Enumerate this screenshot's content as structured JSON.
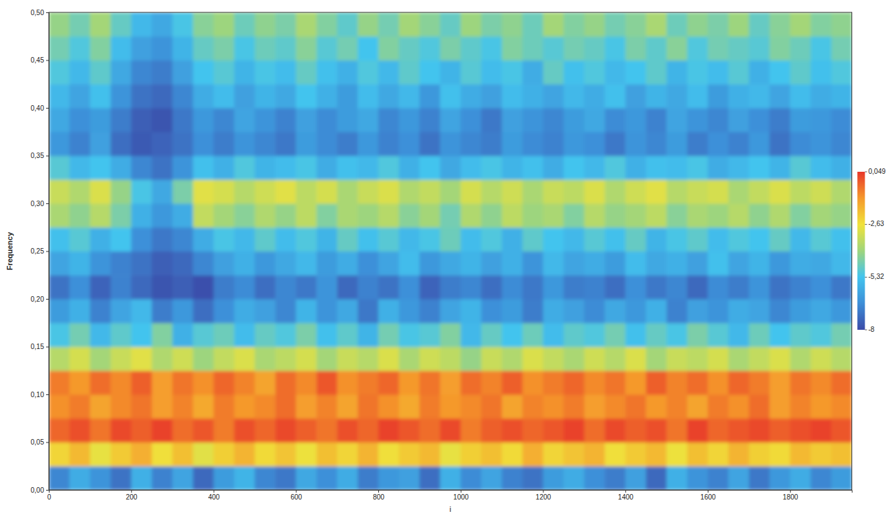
{
  "chart_data": {
    "type": "heatmap",
    "x_label": "i",
    "y_label": "Frequency",
    "xlim": [
      0,
      1950
    ],
    "ylim": [
      0,
      0.5
    ],
    "xticks": [
      0,
      200,
      400,
      600,
      800,
      1000,
      1200,
      1400,
      1600,
      1800
    ],
    "yticks": [
      {
        "value": 0,
        "label": "0,00"
      },
      {
        "value": 0.05,
        "label": "0,05"
      },
      {
        "value": 0.1,
        "label": "0,10"
      },
      {
        "value": 0.15,
        "label": "0,15"
      },
      {
        "value": 0.2,
        "label": "0,20"
      },
      {
        "value": 0.25,
        "label": "0,25"
      },
      {
        "value": 0.3,
        "label": "0,30"
      },
      {
        "value": 0.35,
        "label": "0,35"
      },
      {
        "value": 0.4,
        "label": "0,40"
      },
      {
        "value": 0.45,
        "label": "0,45"
      },
      {
        "value": 0.5,
        "label": "0,50"
      }
    ],
    "x_bins": [
      0,
      50,
      100,
      150,
      200,
      250,
      300,
      350,
      400,
      450,
      500,
      550,
      600,
      650,
      700,
      750,
      800,
      850,
      900,
      950,
      1000,
      1050,
      1100,
      1150,
      1200,
      1250,
      1300,
      1350,
      1400,
      1450,
      1500,
      1550,
      1600,
      1650,
      1700,
      1750,
      1800,
      1850,
      1900,
      1950
    ],
    "y_bins": [
      0,
      0.025,
      0.05,
      0.075,
      0.1,
      0.125,
      0.15,
      0.175,
      0.2,
      0.225,
      0.25,
      0.275,
      0.3,
      0.325,
      0.35,
      0.375,
      0.4,
      0.425,
      0.45,
      0.475,
      0.5
    ],
    "cells": [
      [
        -6.8,
        -5.9,
        -6.5,
        -7.2,
        -5.8,
        -6.9,
        -6.1,
        -7.4,
        -6.3,
        -5.7,
        -6.8,
        -7.1,
        -6.0,
        -6.6,
        -5.9,
        -7.0,
        -6.4,
        -6.2,
        -7.3,
        -5.8,
        -6.7,
        -6.1,
        -6.9,
        -7.2,
        -6.3,
        -5.9,
        -6.6,
        -7.0,
        -6.2,
        -7.4,
        -5.8,
        -6.5,
        -6.9,
        -6.1,
        -7.1,
        -6.4,
        -5.9,
        -6.8,
        -6.3
      ],
      [
        -2.4,
        -1.9,
        -2.8,
        -2.2,
        -1.7,
        -2.6,
        -2.0,
        -2.9,
        -2.3,
        -1.8,
        -2.5,
        -2.1,
        -2.7,
        -2.0,
        -2.4,
        -1.8,
        -2.6,
        -2.2,
        -1.9,
        -2.8,
        -2.3,
        -2.0,
        -2.5,
        -1.7,
        -2.4,
        -2.1,
        -1.8,
        -2.6,
        -2.2,
        -1.9,
        -2.7,
        -2.0,
        -2.4,
        -1.8,
        -2.3,
        -2.5,
        -1.9,
        -2.2,
        -2.0
      ],
      [
        -0.6,
        -0.3,
        -0.8,
        -0.2,
        -0.5,
        -0.1,
        -0.7,
        -0.4,
        -0.9,
        -0.3,
        -0.6,
        -0.2,
        -0.5,
        -0.8,
        -0.3,
        -0.6,
        -0.1,
        -0.4,
        -0.7,
        -0.2,
        -0.9,
        -0.5,
        -0.3,
        -0.6,
        -0.4,
        -0.1,
        -0.7,
        -0.2,
        -0.5,
        -0.3,
        -0.8,
        -0.1,
        -0.6,
        -0.4,
        -0.2,
        -0.5,
        -0.3,
        -0.1,
        -0.4
      ],
      [
        -1.2,
        -0.9,
        -1.5,
        -1.1,
        -0.8,
        -1.4,
        -1.0,
        -1.6,
        -0.9,
        -1.3,
        -1.1,
        -0.7,
        -1.4,
        -1.0,
        -1.5,
        -0.8,
        -1.2,
        -1.6,
        -0.9,
        -1.3,
        -1.1,
        -0.8,
        -1.5,
        -1.0,
        -1.2,
        -0.9,
        -1.4,
        -1.1,
        -0.8,
        -1.3,
        -1.0,
        -1.5,
        -0.9,
        -1.2,
        -0.7,
        -1.4,
        -1.0,
        -1.3,
        -1.1
      ],
      [
        -0.9,
        -1.3,
        -0.7,
        -1.1,
        -0.5,
        -1.4,
        -0.8,
        -1.2,
        -0.6,
        -1.0,
        -1.5,
        -0.7,
        -1.1,
        -0.4,
        -1.2,
        -0.9,
        -0.6,
        -1.3,
        -0.8,
        -1.4,
        -0.7,
        -1.0,
        -0.5,
        -1.2,
        -0.9,
        -0.6,
        -1.1,
        -0.8,
        -1.3,
        -0.5,
        -1.0,
        -0.7,
        -1.2,
        -0.6,
        -0.9,
        -1.4,
        -0.8,
        -1.1,
        -0.7
      ],
      [
        -3.6,
        -3.1,
        -3.9,
        -3.3,
        -2.9,
        -3.7,
        -3.2,
        -4.0,
        -3.4,
        -3.0,
        -3.8,
        -3.5,
        -3.1,
        -3.9,
        -3.3,
        -3.6,
        -3.0,
        -3.8,
        -3.2,
        -3.5,
        -4.1,
        -3.3,
        -3.7,
        -3.0,
        -3.4,
        -3.8,
        -3.2,
        -3.6,
        -3.0,
        -3.9,
        -3.3,
        -3.5,
        -3.1,
        -3.8,
        -3.4,
        -3.0,
        -3.7,
        -3.2,
        -3.6
      ],
      [
        -5.2,
        -4.6,
        -5.6,
        -4.9,
        -5.3,
        -4.4,
        -5.8,
        -5.0,
        -4.7,
        -5.5,
        -4.8,
        -5.1,
        -4.5,
        -5.4,
        -4.9,
        -5.7,
        -4.6,
        -5.2,
        -5.0,
        -4.4,
        -5.6,
        -4.8,
        -5.3,
        -4.7,
        -5.5,
        -4.9,
        -5.1,
        -4.6,
        -5.4,
        -4.8,
        -5.2,
        -4.5,
        -5.0,
        -5.6,
        -4.7,
        -5.3,
        -4.9,
        -5.1,
        -4.6
      ],
      [
        -6.3,
        -5.8,
        -6.9,
        -6.1,
        -5.6,
        -7.0,
        -6.4,
        -7.3,
        -6.6,
        -5.9,
        -6.2,
        -6.8,
        -5.7,
        -6.5,
        -6.0,
        -7.1,
        -5.8,
        -6.4,
        -6.9,
        -6.1,
        -5.7,
        -6.6,
        -6.3,
        -7.0,
        -5.9,
        -6.2,
        -6.7,
        -6.0,
        -6.4,
        -5.8,
        -6.9,
        -6.2,
        -6.5,
        -5.9,
        -6.1,
        -6.8,
        -6.3,
        -6.0,
        -6.4
      ],
      [
        -7.2,
        -6.6,
        -7.5,
        -6.9,
        -7.4,
        -7.8,
        -7.6,
        -7.9,
        -7.0,
        -6.7,
        -7.3,
        -6.8,
        -7.1,
        -6.5,
        -7.4,
        -6.9,
        -7.2,
        -6.6,
        -7.5,
        -7.0,
        -6.8,
        -7.3,
        -6.7,
        -7.1,
        -6.4,
        -7.0,
        -6.9,
        -7.3,
        -6.6,
        -7.1,
        -6.8,
        -7.4,
        -6.7,
        -7.0,
        -6.5,
        -7.2,
        -6.9,
        -6.6,
        -7.1
      ],
      [
        -6.1,
        -5.7,
        -6.5,
        -6.9,
        -7.2,
        -7.6,
        -7.4,
        -6.8,
        -6.2,
        -5.8,
        -6.4,
        -6.0,
        -5.6,
        -6.3,
        -5.9,
        -6.6,
        -6.1,
        -5.5,
        -6.4,
        -6.0,
        -5.7,
        -6.2,
        -5.8,
        -6.5,
        -5.6,
        -6.1,
        -5.9,
        -6.3,
        -5.5,
        -6.0,
        -5.8,
        -6.2,
        -5.4,
        -6.1,
        -5.7,
        -6.4,
        -5.9,
        -6.0,
        -5.6
      ],
      [
        -5.4,
        -5.0,
        -5.8,
        -5.3,
        -6.6,
        -7.1,
        -6.8,
        -5.9,
        -5.2,
        -5.6,
        -4.9,
        -5.5,
        -5.1,
        -5.7,
        -4.8,
        -5.4,
        -5.0,
        -5.6,
        -5.2,
        -4.7,
        -5.5,
        -5.1,
        -5.8,
        -4.9,
        -5.3,
        -5.6,
        -5.0,
        -5.4,
        -4.8,
        -5.7,
        -5.2,
        -4.9,
        -5.5,
        -5.1,
        -5.3,
        -4.8,
        -5.6,
        -5.0,
        -5.4
      ],
      [
        -3.8,
        -4.2,
        -3.6,
        -4.5,
        -5.8,
        -6.4,
        -5.9,
        -3.4,
        -3.9,
        -4.3,
        -3.7,
        -4.1,
        -3.5,
        -4.4,
        -3.8,
        -4.0,
        -3.6,
        -4.3,
        -3.9,
        -4.6,
        -3.7,
        -4.2,
        -3.5,
        -4.0,
        -3.8,
        -4.4,
        -3.6,
        -4.1,
        -3.9,
        -3.5,
        -4.3,
        -3.8,
        -4.0,
        -3.6,
        -4.2,
        -3.7,
        -4.4,
        -3.9,
        -4.1
      ],
      [
        -3.3,
        -3.7,
        -3.0,
        -4.1,
        -5.2,
        -6.0,
        -4.5,
        -2.9,
        -3.1,
        -3.6,
        -3.2,
        -2.9,
        -3.5,
        -3.1,
        -3.8,
        -3.3,
        -3.0,
        -3.7,
        -3.4,
        -3.9,
        -3.1,
        -3.6,
        -3.2,
        -3.8,
        -3.3,
        -3.5,
        -3.0,
        -3.7,
        -3.2,
        -2.9,
        -3.6,
        -3.3,
        -3.1,
        -3.8,
        -3.4,
        -3.0,
        -3.5,
        -3.2,
        -3.7
      ],
      [
        -5.0,
        -5.6,
        -5.3,
        -5.9,
        -6.8,
        -7.2,
        -6.5,
        -5.4,
        -5.8,
        -5.1,
        -5.7,
        -5.5,
        -5.2,
        -5.9,
        -5.4,
        -5.6,
        -5.1,
        -5.8,
        -5.3,
        -6.0,
        -5.5,
        -5.2,
        -5.7,
        -5.4,
        -5.9,
        -5.3,
        -5.6,
        -5.1,
        -5.8,
        -5.4,
        -5.5,
        -5.2,
        -5.9,
        -5.6,
        -5.3,
        -5.7,
        -5.0,
        -5.5,
        -5.8
      ],
      [
        -6.4,
        -6.9,
        -6.2,
        -7.3,
        -7.7,
        -7.5,
        -7.2,
        -6.6,
        -7.0,
        -6.5,
        -6.8,
        -7.1,
        -6.3,
        -6.7,
        -7.0,
        -6.4,
        -6.9,
        -6.6,
        -7.2,
        -6.5,
        -6.8,
        -7.0,
        -6.3,
        -6.7,
        -6.9,
        -6.4,
        -6.6,
        -7.1,
        -6.5,
        -6.8,
        -6.3,
        -7.0,
        -6.6,
        -6.9,
        -6.4,
        -7.2,
        -6.7,
        -6.5,
        -6.8
      ],
      [
        -6.0,
        -6.6,
        -6.3,
        -7.0,
        -7.6,
        -7.8,
        -7.1,
        -6.4,
        -6.8,
        -6.1,
        -6.5,
        -6.9,
        -6.2,
        -6.7,
        -6.3,
        -6.0,
        -6.8,
        -6.4,
        -6.9,
        -6.1,
        -6.6,
        -7.1,
        -6.2,
        -6.5,
        -6.8,
        -6.3,
        -6.0,
        -6.7,
        -6.4,
        -6.9,
        -6.1,
        -6.5,
        -6.8,
        -6.2,
        -6.6,
        -7.0,
        -6.3,
        -6.4,
        -6.7
      ],
      [
        -5.6,
        -6.1,
        -5.4,
        -6.5,
        -7.2,
        -7.4,
        -6.8,
        -5.9,
        -5.5,
        -6.2,
        -5.7,
        -6.0,
        -5.3,
        -5.8,
        -6.3,
        -5.5,
        -6.0,
        -5.6,
        -6.4,
        -5.4,
        -5.9,
        -6.2,
        -5.5,
        -5.8,
        -6.1,
        -5.6,
        -5.9,
        -5.4,
        -6.2,
        -5.7,
        -6.0,
        -5.5,
        -6.3,
        -5.8,
        -5.6,
        -6.1,
        -5.5,
        -5.9,
        -5.7
      ],
      [
        -5.1,
        -5.6,
        -4.9,
        -6.0,
        -6.8,
        -7.0,
        -6.2,
        -5.3,
        -5.0,
        -5.7,
        -5.2,
        -5.5,
        -4.8,
        -5.4,
        -5.8,
        -5.1,
        -5.6,
        -4.9,
        -5.3,
        -5.7,
        -5.0,
        -5.5,
        -5.2,
        -5.9,
        -4.8,
        -5.4,
        -5.1,
        -5.6,
        -5.3,
        -4.9,
        -5.7,
        -5.2,
        -5.5,
        -5.0,
        -5.8,
        -5.3,
        -4.9,
        -5.4,
        -5.1
      ],
      [
        -4.6,
        -5.1,
        -4.4,
        -5.5,
        -6.2,
        -6.5,
        -5.7,
        -4.8,
        -4.5,
        -5.2,
        -4.7,
        -4.9,
        -4.3,
        -5.0,
        -4.6,
        -5.3,
        -4.4,
        -4.8,
        -5.1,
        -4.5,
        -4.9,
        -5.2,
        -4.4,
        -4.7,
        -5.0,
        -4.6,
        -4.8,
        -5.2,
        -4.5,
        -4.9,
        -4.3,
        -5.1,
        -4.6,
        -4.8,
        -5.0,
        -4.4,
        -4.7,
        -5.2,
        -4.6
      ],
      [
        -4.1,
        -4.6,
        -3.9,
        -4.8,
        -5.6,
        -6.0,
        -5.2,
        -4.3,
        -4.0,
        -4.7,
        -4.2,
        -4.5,
        -3.8,
        -4.4,
        -4.9,
        -4.1,
        -4.6,
        -3.9,
        -4.3,
        -4.8,
        -4.0,
        -4.5,
        -4.2,
        -4.7,
        -3.9,
        -4.4,
        -4.1,
        -4.6,
        -4.3,
        -3.8,
        -4.7,
        -4.2,
        -4.5,
        -4.0,
        -4.8,
        -4.3,
        -3.9,
        -4.4,
        -4.2
      ]
    ],
    "color_bar": {
      "range": [
        -8,
        0.049
      ],
      "ticks": [
        {
          "value": 0.049,
          "label": "0,049"
        },
        {
          "value": -2.63,
          "label": "-2,63"
        },
        {
          "value": -5.32,
          "label": "-5,32"
        },
        -8
      ]
    }
  }
}
